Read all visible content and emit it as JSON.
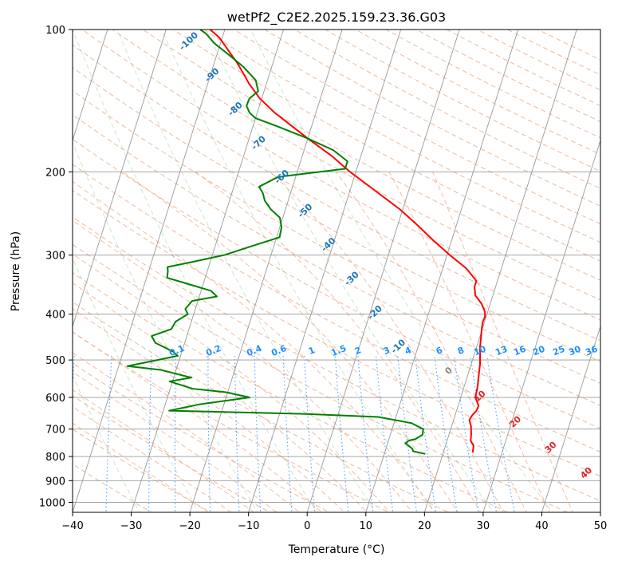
{
  "chart_data": {
    "type": "line",
    "title": "wetPf2_C2E2.2025.159.23.36.G03",
    "xlabel": "Temperature (°C)",
    "ylabel": "Pressure (hPa)",
    "xlim": [
      -40,
      50
    ],
    "ylim": [
      1050,
      100
    ],
    "y_scale": "log",
    "skew": true,
    "grid": true,
    "x_ticks": [
      -40,
      -30,
      -20,
      -10,
      0,
      10,
      20,
      30,
      40,
      50
    ],
    "y_ticks": [
      100,
      200,
      300,
      400,
      500,
      600,
      700,
      800,
      900,
      1000
    ],
    "series": [
      {
        "color": "#ff0000",
        "points": [
          [
            785,
            25.0
          ],
          [
            760,
            24.8
          ],
          [
            740,
            24.0
          ],
          [
            720,
            23.8
          ],
          [
            690,
            23.3
          ],
          [
            670,
            22.7
          ],
          [
            655,
            22.9
          ],
          [
            640,
            23.4
          ],
          [
            625,
            23.5
          ],
          [
            600,
            22.5
          ],
          [
            570,
            22.3
          ],
          [
            540,
            21.9
          ],
          [
            510,
            21.5
          ],
          [
            470,
            20.6
          ],
          [
            430,
            19.9
          ],
          [
            415,
            19.7
          ],
          [
            405,
            19.8
          ],
          [
            395,
            19.5
          ],
          [
            380,
            18.5
          ],
          [
            365,
            17.0
          ],
          [
            350,
            16.4
          ],
          [
            340,
            16.4
          ],
          [
            320,
            14.0
          ],
          [
            300,
            10.5
          ],
          [
            280,
            7.0
          ],
          [
            260,
            3.5
          ],
          [
            240,
            -0.5
          ],
          [
            220,
            -5.5
          ],
          [
            200,
            -11.0
          ],
          [
            185,
            -15.0
          ],
          [
            170,
            -20.0
          ],
          [
            150,
            -27.0
          ],
          [
            140,
            -30.3
          ],
          [
            130,
            -33.0
          ],
          [
            125,
            -34.2
          ],
          [
            118,
            -36.0
          ],
          [
            110,
            -38.5
          ],
          [
            104,
            -40.5
          ],
          [
            100,
            -42.5
          ]
        ]
      },
      {
        "color": "#008000",
        "points": [
          [
            790,
            17.0
          ],
          [
            780,
            14.8
          ],
          [
            770,
            14.5
          ],
          [
            750,
            13.0
          ],
          [
            740,
            13.5
          ],
          [
            735,
            14.5
          ],
          [
            720,
            15.5
          ],
          [
            700,
            15.3
          ],
          [
            680,
            13.0
          ],
          [
            660,
            7.0
          ],
          [
            650,
            -6.0
          ],
          [
            640,
            -29.0
          ],
          [
            620,
            -24.0
          ],
          [
            600,
            -16.0
          ],
          [
            585,
            -20.3
          ],
          [
            575,
            -26.2
          ],
          [
            555,
            -30.5
          ],
          [
            545,
            -27.0
          ],
          [
            525,
            -32.5
          ],
          [
            515,
            -38.5
          ],
          [
            500,
            -33.7
          ],
          [
            490,
            -30.5
          ],
          [
            480,
            -31.5
          ],
          [
            460,
            -35.0
          ],
          [
            445,
            -36.0
          ],
          [
            430,
            -33.0
          ],
          [
            415,
            -32.7
          ],
          [
            400,
            -31.0
          ],
          [
            390,
            -31.7
          ],
          [
            375,
            -31.0
          ],
          [
            367,
            -27.0
          ],
          [
            357,
            -28.3
          ],
          [
            345,
            -32.7
          ],
          [
            335,
            -36.5
          ],
          [
            325,
            -36.7
          ],
          [
            318,
            -37.0
          ],
          [
            310,
            -33.0
          ],
          [
            300,
            -28.0
          ],
          [
            285,
            -23.0
          ],
          [
            275,
            -19.5
          ],
          [
            262,
            -19.7
          ],
          [
            250,
            -20.5
          ],
          [
            240,
            -22.5
          ],
          [
            230,
            -24.0
          ],
          [
            222,
            -24.7
          ],
          [
            215,
            -25.7
          ],
          [
            205,
            -23.0
          ],
          [
            197,
            -12.0
          ],
          [
            190,
            -12.0
          ],
          [
            180,
            -15.0
          ],
          [
            170,
            -20.0
          ],
          [
            160,
            -26.0
          ],
          [
            154,
            -30.0
          ],
          [
            150,
            -31.3
          ],
          [
            145,
            -32.2
          ],
          [
            140,
            -32.1
          ],
          [
            135,
            -31.0
          ],
          [
            128,
            -32.0
          ],
          [
            120,
            -34.8
          ],
          [
            113,
            -38.0
          ],
          [
            107,
            -41.0
          ],
          [
            102,
            -43.0
          ],
          [
            100,
            -44.2
          ]
        ]
      }
    ],
    "background_lines": {
      "dry_adiabat_labels_c": [
        -100,
        -90,
        -80,
        -70,
        -60,
        -50,
        -40,
        -30,
        -20,
        -10,
        0,
        10,
        20,
        30,
        40
      ],
      "mixing_ratio_labels_gkg": [
        "0.1",
        "0.2",
        "0.4",
        "0.6",
        "1",
        "1.5",
        "2",
        "3",
        "4",
        "6",
        "8",
        "10",
        "13",
        "16",
        "20",
        "25",
        "30",
        "36"
      ],
      "colors": {
        "dry_adiabat": "#d2691e",
        "moist_adiabat": "#f4a582",
        "mixing_ratio": "#1e90ff",
        "isotherm_grid": "#999999",
        "label_blue": "#1f77b4",
        "label_red": "#d62728",
        "label_gray": "#888888",
        "label_mixing": "#1e90ff"
      }
    }
  }
}
